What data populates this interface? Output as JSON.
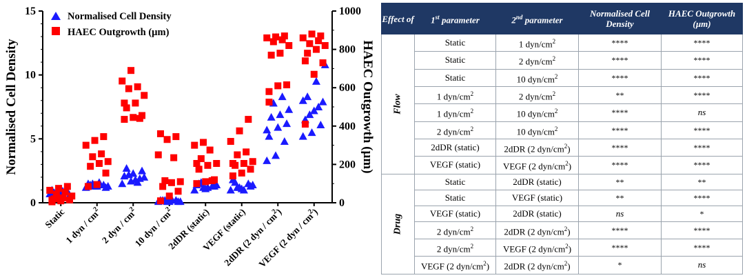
{
  "chart_data": {
    "type": "scatter",
    "categories": [
      "Static",
      "1 dyn / cm2",
      "2 dyn / cm2",
      "10 dyn / cm2",
      "2dDR (static)",
      "VEGF (static)",
      "2dDR (2 dyn / cm2)",
      "VEGF (2 dyn / cm2)"
    ],
    "category_labels": [
      {
        "main": "Static",
        "sup": ""
      },
      {
        "main": "1 dyn / cm",
        "sup": "2"
      },
      {
        "main": "2 dyn / cm",
        "sup": "2"
      },
      {
        "main": "10 dyn / cm",
        "sup": "2"
      },
      {
        "main": "2dDR (static)",
        "sup": ""
      },
      {
        "main": "VEGF (static)",
        "sup": ""
      },
      {
        "main": "2dDR (2 dyn / cm",
        "sup": "2",
        "tail": ")"
      },
      {
        "main": "VEGF (2 dyn / cm",
        "sup": "2",
        "tail": ")"
      }
    ],
    "ylabel": "Normalised Cell Density",
    "y2label": "HAEC Outgrowth (µm)",
    "ylim": [
      0,
      15
    ],
    "y2lim": [
      0,
      1000
    ],
    "yticks": [
      "0",
      "5",
      "10",
      "15"
    ],
    "y2ticks": [
      "0",
      "200",
      "400",
      "600",
      "800",
      "1000"
    ],
    "series": [
      {
        "name": "Normalised Cell Density",
        "axis": "left",
        "marker": "triangle",
        "color": "#1a1aff",
        "values": [
          [
            0.7,
            0.8,
            0.9,
            1.0,
            1.1,
            0.6,
            0.8,
            0.9
          ],
          [
            1.2,
            1.3,
            1.4,
            1.5,
            1.3,
            1.2,
            1.4,
            1.6,
            1.3,
            1.5
          ],
          [
            1.5,
            1.7,
            1.9,
            2.1,
            2.3,
            2.5,
            2.7,
            1.8,
            2.0,
            2.2,
            1.6
          ],
          [
            0.1,
            0.1,
            0.2,
            0.2,
            0.1,
            0.1,
            0.2,
            0.3,
            0.1,
            0.2
          ],
          [
            1.0,
            1.2,
            1.3,
            1.4,
            1.1,
            1.3,
            1.5,
            1.2,
            1.4,
            1.6
          ],
          [
            1.0,
            1.2,
            1.5,
            1.8,
            1.1,
            1.3,
            1.6,
            1.0,
            1.4,
            1.2
          ],
          [
            3.3,
            3.7,
            4.8,
            5.2,
            5.9,
            6.2,
            6.7,
            6.9,
            7.3,
            7.8,
            8.3,
            5.7
          ],
          [
            5.2,
            5.5,
            6.1,
            6.5,
            7.2,
            7.9,
            8.3,
            9.5,
            10.8,
            6.9,
            7.5,
            8.0
          ]
        ]
      },
      {
        "name": "HAEC Outgrowth (µm)",
        "axis": "right",
        "marker": "square",
        "color": "#ff0000",
        "values": [
          [
            5,
            10,
            15,
            20,
            25,
            35,
            45,
            55,
            65,
            75,
            85,
            15
          ],
          [
            85,
            95,
            155,
            190,
            205,
            215,
            240,
            255,
            300,
            325,
            345
          ],
          [
            435,
            445,
            455,
            495,
            520,
            560,
            595,
            605,
            635,
            690,
            440,
            520
          ],
          [
            10,
            35,
            60,
            85,
            105,
            110,
            115,
            235,
            250,
            330,
            345,
            360
          ],
          [
            100,
            110,
            120,
            175,
            195,
            205,
            230,
            275,
            300,
            315,
            115,
            205
          ],
          [
            140,
            155,
            175,
            195,
            205,
            215,
            250,
            265,
            320,
            375,
            435,
            205
          ],
          [
            525,
            610,
            615,
            770,
            780,
            820,
            840,
            850,
            860,
            865,
            870,
            580
          ],
          [
            410,
            670,
            730,
            780,
            800,
            820,
            830,
            845,
            860,
            880,
            870,
            740
          ]
        ]
      }
    ]
  },
  "table": {
    "headers": [
      {
        "text": "Effect of"
      },
      {
        "main": "1",
        "sup": "st",
        "tail": " parameter"
      },
      {
        "main": "2",
        "sup": "nd",
        "tail": " parameter"
      },
      {
        "text": "Normalised Cell Density"
      },
      {
        "text": "HAEC Outgrowth (µm)"
      }
    ],
    "groups": [
      {
        "effect": "Flow",
        "rows": [
          {
            "p1": [
              "Static",
              ""
            ],
            "p2": [
              "1 dyn/cm",
              "2"
            ],
            "density": "****",
            "outgrowth": "****"
          },
          {
            "p1": [
              "Static",
              ""
            ],
            "p2": [
              "2 dyn/cm",
              "2"
            ],
            "density": "****",
            "outgrowth": "****"
          },
          {
            "p1": [
              "Static",
              ""
            ],
            "p2": [
              "10 dyn/cm",
              "2"
            ],
            "density": "****",
            "outgrowth": "****"
          },
          {
            "p1": [
              "1 dyn/cm",
              "2"
            ],
            "p2": [
              "2 dyn/cm",
              "2"
            ],
            "density": "**",
            "outgrowth": "****"
          },
          {
            "p1": [
              "1 dyn/cm",
              "2"
            ],
            "p2": [
              "10 dyn/cm",
              "2"
            ],
            "density": "****",
            "outgrowth": "ns"
          },
          {
            "p1": [
              "2 dyn/cm",
              "2"
            ],
            "p2": [
              "10 dyn/cm",
              "2"
            ],
            "density": "****",
            "outgrowth": "****"
          },
          {
            "p1": [
              "2dDR (static)",
              ""
            ],
            "p2": [
              "2dDR (2 dyn/cm",
              "2",
              ")"
            ],
            "density": "****",
            "outgrowth": "****"
          },
          {
            "p1": [
              "VEGF (static)",
              ""
            ],
            "p2": [
              "VEGF (2 dyn/cm",
              "2",
              ")"
            ],
            "density": "****",
            "outgrowth": "****"
          }
        ]
      },
      {
        "effect": "Drug",
        "rows": [
          {
            "p1": [
              "Static",
              ""
            ],
            "p2": [
              "2dDR (static)",
              ""
            ],
            "density": "**",
            "outgrowth": "**"
          },
          {
            "p1": [
              "Static",
              ""
            ],
            "p2": [
              "VEGF (static)",
              ""
            ],
            "density": "**",
            "outgrowth": "****"
          },
          {
            "p1": [
              "VEGF (static)",
              ""
            ],
            "p2": [
              "2dDR (static)",
              ""
            ],
            "density": "ns",
            "outgrowth": "*"
          },
          {
            "p1": [
              "2 dyn/cm",
              "2"
            ],
            "p2": [
              "2dDR (2 dyn/cm",
              "2",
              ")"
            ],
            "density": "****",
            "outgrowth": "****"
          },
          {
            "p1": [
              "2 dyn/cm",
              "2"
            ],
            "p2": [
              "VEGF (2 dyn/cm",
              "2",
              ")"
            ],
            "density": "****",
            "outgrowth": "****"
          },
          {
            "p1": [
              "VEGF (2 dyn/cm",
              "2",
              ")"
            ],
            "p2": [
              "2dDR (2 dyn/cm",
              "2",
              ")"
            ],
            "density": "*",
            "outgrowth": "ns"
          }
        ]
      }
    ]
  }
}
